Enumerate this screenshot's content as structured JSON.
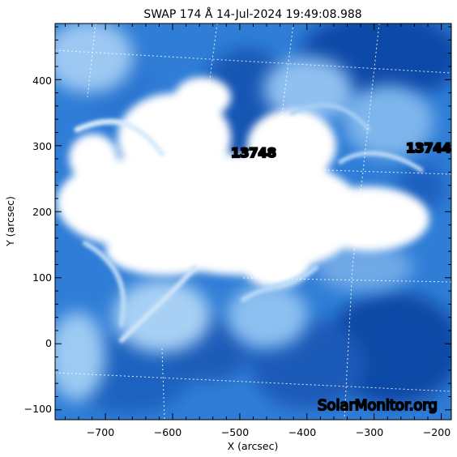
{
  "image": {
    "title": "SWAP 174 Å 14-Jul-2024 19:49:08.988",
    "x_axis": {
      "label": "X (arcsec)",
      "range": [
        -775,
        -185
      ],
      "ticks": [
        {
          "value": -700,
          "label": "−700"
        },
        {
          "value": -600,
          "label": "−600"
        },
        {
          "value": -500,
          "label": "−500"
        },
        {
          "value": -400,
          "label": "−400"
        },
        {
          "value": -300,
          "label": "−300"
        },
        {
          "value": -200,
          "label": "−200"
        }
      ]
    },
    "y_axis": {
      "label": "Y (arcsec)",
      "range": [
        -115,
        485
      ],
      "ticks": [
        {
          "value": -100,
          "label": "−100"
        },
        {
          "value": 0,
          "label": "0"
        },
        {
          "value": 100,
          "label": "100"
        },
        {
          "value": 200,
          "label": "200"
        },
        {
          "value": 300,
          "label": "300"
        },
        {
          "value": 400,
          "label": "400"
        }
      ]
    },
    "regions": [
      {
        "label": "13748",
        "x": -475,
        "y": 288
      },
      {
        "label": "13744",
        "x": -212,
        "y": 298
      }
    ],
    "watermark": "SolarMonitor.org",
    "colors": {
      "deep": "#0a4aa8",
      "mid": "#2f7dd6",
      "light": "#8fc0f0",
      "saturated": "#ffffff"
    }
  }
}
